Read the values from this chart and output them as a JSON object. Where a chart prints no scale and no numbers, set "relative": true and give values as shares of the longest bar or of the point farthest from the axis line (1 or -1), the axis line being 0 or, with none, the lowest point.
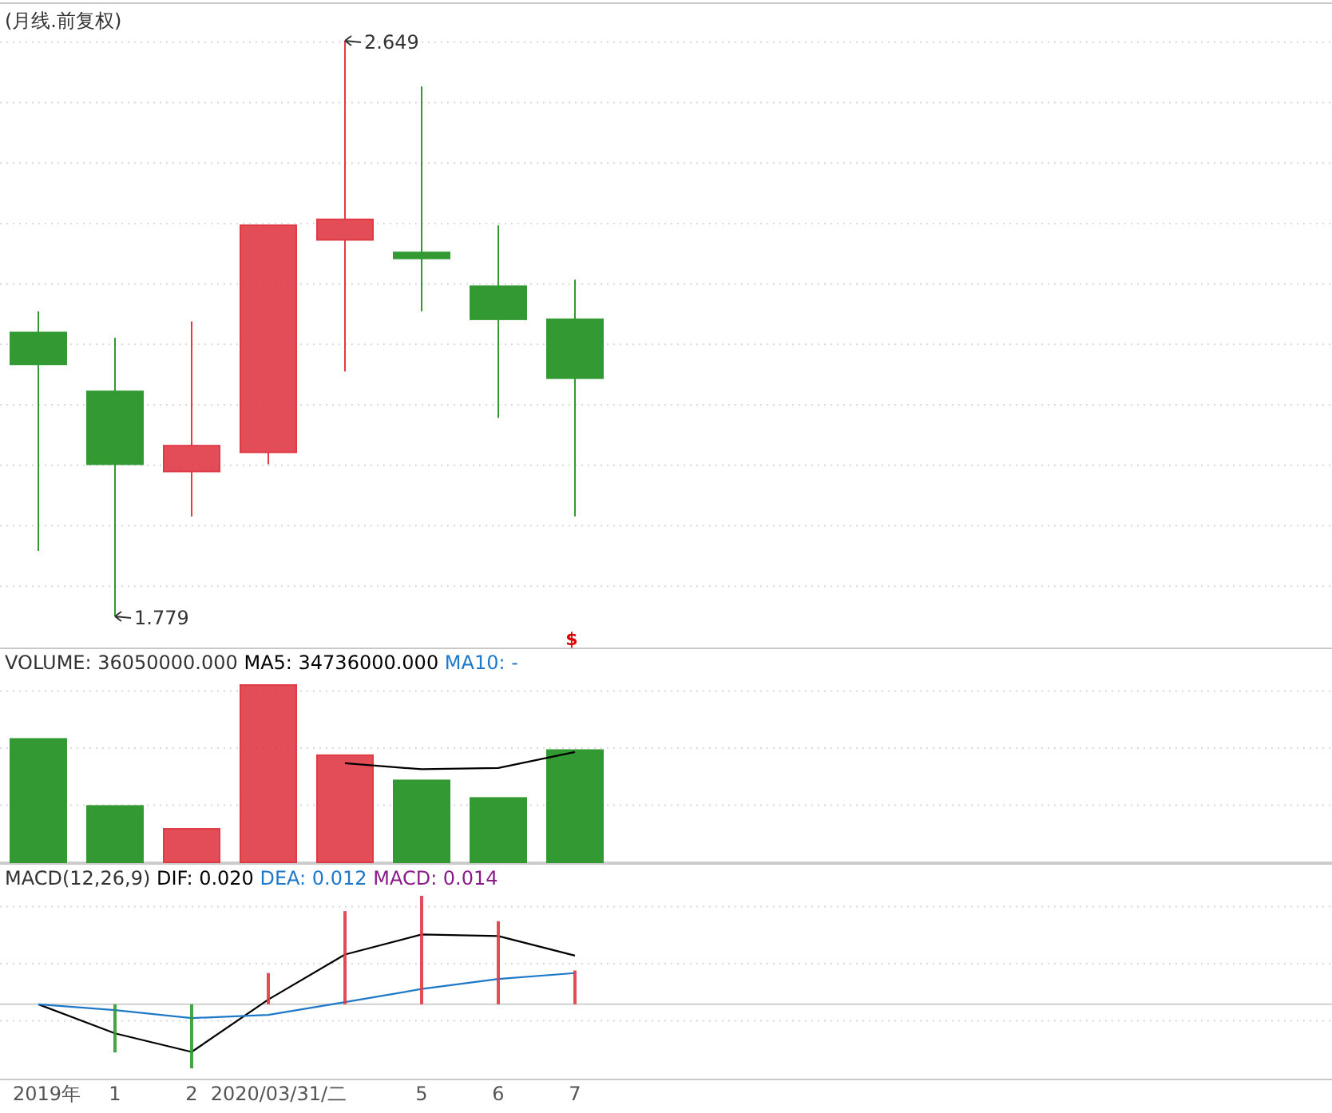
{
  "chart_data": [
    {
      "type": "candlestick",
      "title": "(月线.前复权)",
      "categories": [
        null,
        null,
        null,
        null,
        null,
        null,
        null,
        null
      ],
      "ohlc": [
        [
          2.208,
          2.24,
          1.878,
          2.16
        ],
        [
          2.119,
          2.2,
          1.779,
          2.009
        ],
        [
          1.998,
          2.225,
          1.93,
          2.037
        ],
        [
          2.027,
          2.37,
          2.009,
          2.37
        ],
        [
          2.348,
          2.649,
          2.149,
          2.379
        ],
        [
          2.329,
          2.58,
          2.24,
          2.32
        ],
        [
          2.278,
          2.37,
          2.079,
          2.228
        ],
        [
          2.228,
          2.288,
          1.93,
          2.139
        ]
      ],
      "colors": [
        "#339933",
        "#339933",
        "#e03a45",
        "#e03a45",
        "#e03a45",
        "#339933",
        "#339933",
        "#339933"
      ],
      "annotations": [
        "2.649",
        "1.779",
        "$"
      ],
      "grid": "y",
      "tick_labels": false
    },
    {
      "type": "bar",
      "relative": true,
      "title": "VOLUME: 36050000.000",
      "categories": [
        null,
        null,
        null,
        null,
        null,
        null,
        null,
        null
      ],
      "series": [
        {
          "color": "#339933",
          "colors": [
            "#339933",
            "#339933",
            "#e03a45",
            "#e03a45",
            "#e03a45",
            "#339933",
            "#339933",
            "#339933"
          ],
          "values": [
            0.696,
            0.318,
            0.189,
            1,
            0.604,
            0.462,
            0.363,
            0.633
          ]
        },
        {
          "name": "MA5: 34736000.000",
          "type": "line",
          "color": "#000000",
          "values": [
            null,
            null,
            null,
            null,
            0.559,
            0.525,
            0.532,
            0.622
          ]
        },
        {
          "name": "MA10: -",
          "type": "line",
          "color": "#1e78c8",
          "values": [
            null,
            null,
            null,
            null,
            null,
            null,
            null,
            null
          ]
        }
      ],
      "grid": "y",
      "tick_labels": false
    },
    {
      "type": "line",
      "relative": true,
      "title": "MACD(12,26,9)",
      "categories": [
        "2019年",
        "1",
        "2",
        "2020/03/31/二",
        null,
        "5",
        "6",
        "7"
      ],
      "series": [
        {
          "name": "DIF: 0.020",
          "color": "#000000",
          "values": [
            0,
            -0.268,
            -0.439,
            0.044,
            0.459,
            0.644,
            0.629,
            0.449
          ]
        },
        {
          "name": "DEA: 0.012",
          "color": "#1e78c8",
          "values": [
            0,
            -0.054,
            -0.127,
            -0.098,
            0.02,
            0.141,
            0.234,
            0.288
          ]
        },
        {
          "name": "MACD: 0.014",
          "type": "bar",
          "color": "#8b1a8b",
          "colors": [
            null,
            "#339933",
            "#339933",
            "#e03a45",
            "#e03a45",
            "#e03a45",
            "#e03a45",
            "#e03a45"
          ],
          "values": [
            null,
            -0.444,
            -0.59,
            0.288,
            0.859,
            1,
            0.766,
            0.312
          ]
        }
      ],
      "grid": "y",
      "tick_labels": "x"
    }
  ]
}
